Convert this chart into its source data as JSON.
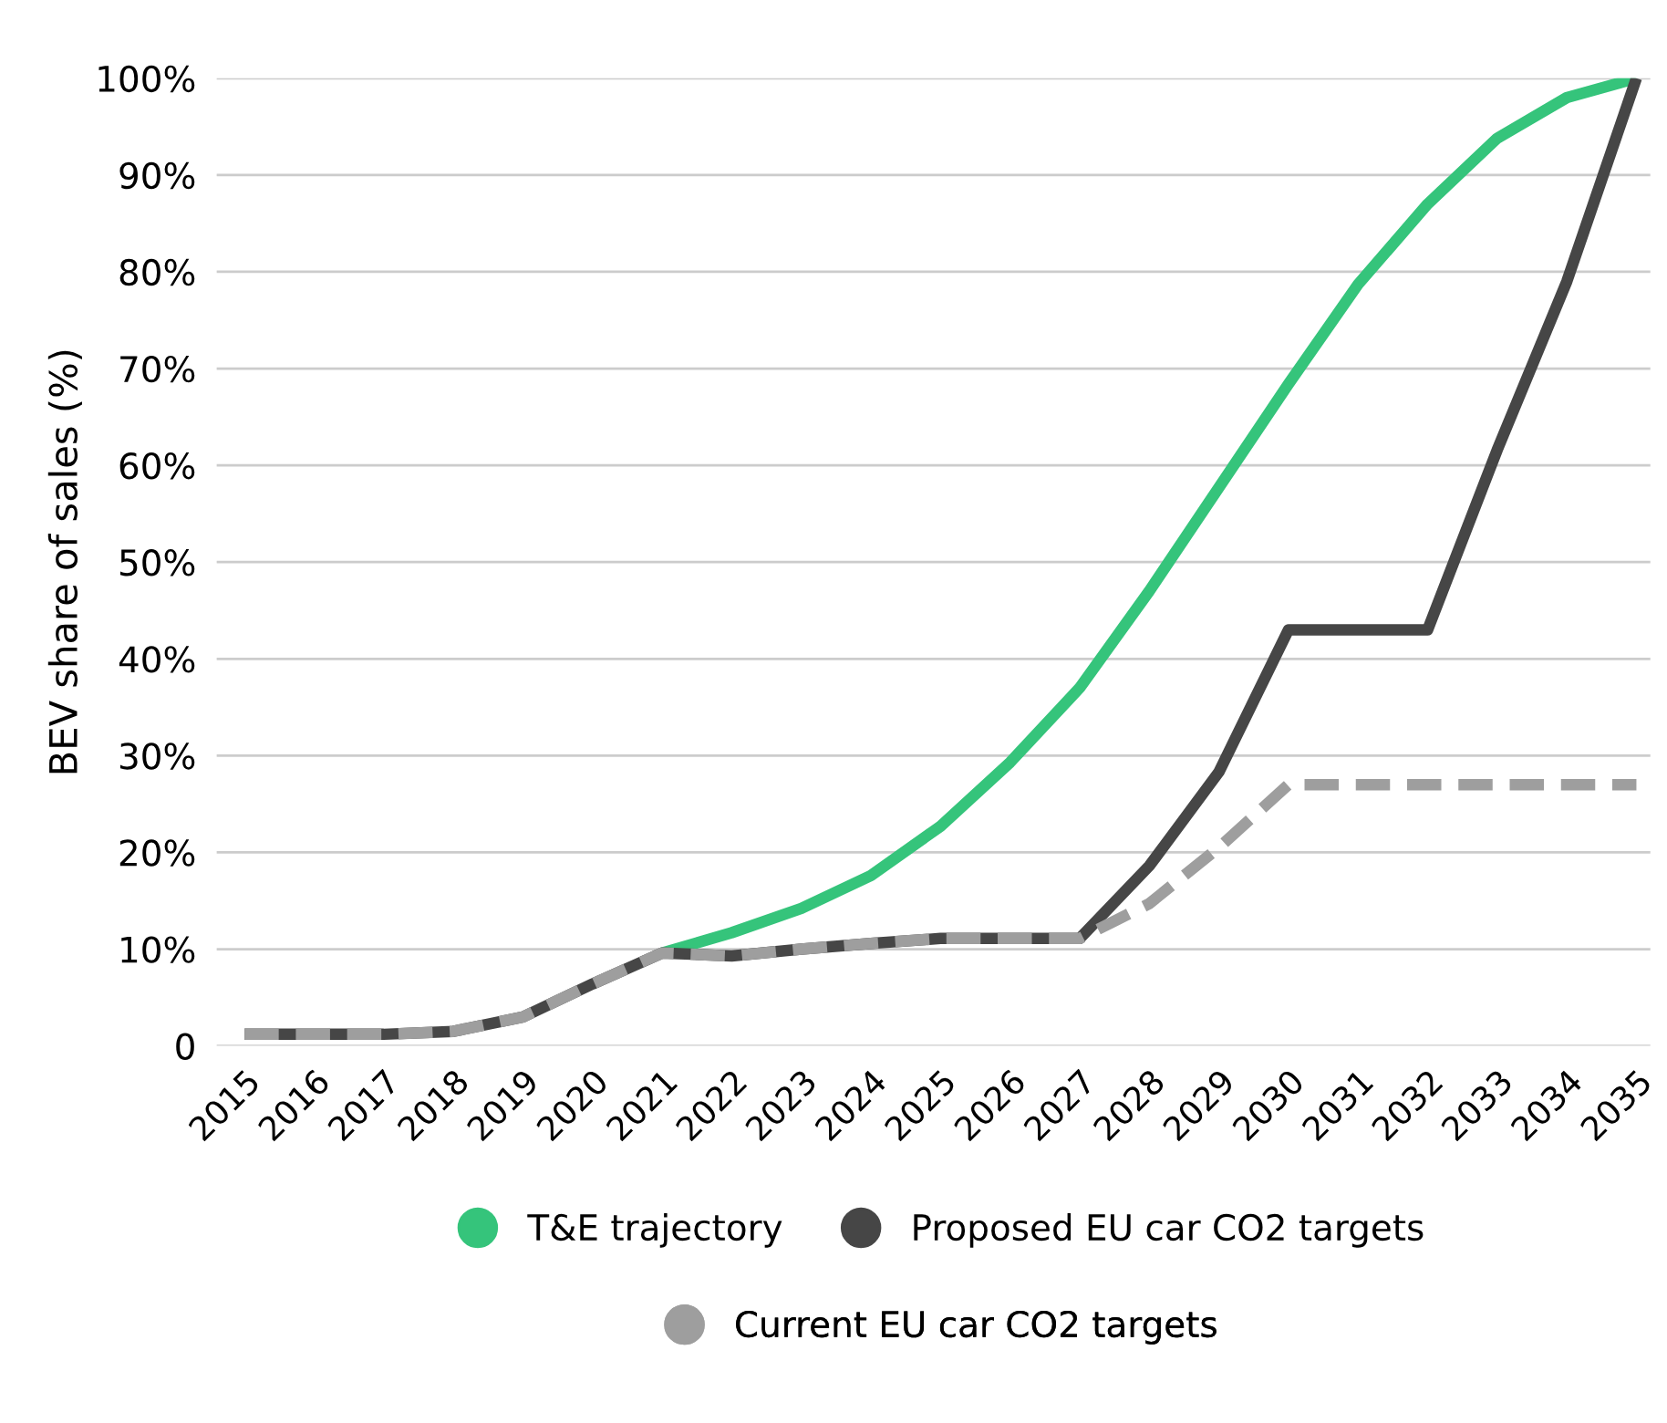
{
  "chart_data": {
    "type": "line",
    "ylabel": "BEV share of sales (%)",
    "categories": [
      "2015",
      "2016",
      "2017",
      "2018",
      "2019",
      "2020",
      "2021",
      "2022",
      "2023",
      "2024",
      "2025",
      "2026",
      "2027",
      "2028",
      "2029",
      "2030",
      "2031",
      "2032",
      "2033",
      "2034",
      "2035"
    ],
    "series": [
      {
        "name": "T&E trajectory",
        "color": "#35c47b",
        "line_style": "solid",
        "values": [
          null,
          null,
          null,
          null,
          null,
          null,
          9.6,
          11.7,
          14.2,
          17.6,
          22.7,
          29.3,
          37,
          47,
          57.7,
          68.4,
          78.7,
          87,
          93.8,
          98,
          100
        ]
      },
      {
        "name": "Proposed EU car CO2 targets",
        "color": "#464646",
        "line_style": "solid",
        "values": [
          1.2,
          1.2,
          1.2,
          1.5,
          3,
          6.4,
          9.6,
          9.3,
          10,
          10.6,
          11.1,
          11.1,
          11.1,
          18.6,
          28.3,
          43,
          43,
          43,
          61.6,
          79,
          100
        ]
      },
      {
        "name": "Current EU car CO2 targets",
        "color": "#9e9e9e",
        "line_style": "dashed",
        "values": [
          1.2,
          1.2,
          1.2,
          1.5,
          3,
          6.4,
          9.6,
          9.3,
          10,
          10.6,
          11.1,
          11.1,
          11.1,
          14.7,
          20.5,
          27,
          27,
          27,
          27,
          27,
          27
        ]
      }
    ],
    "ylim": [
      0,
      100
    ],
    "yticks": [
      {
        "value": 0,
        "label": "0"
      },
      {
        "value": 10,
        "label": "10%"
      },
      {
        "value": 20,
        "label": "20%"
      },
      {
        "value": 30,
        "label": "30%"
      },
      {
        "value": 40,
        "label": "40%"
      },
      {
        "value": 50,
        "label": "50%"
      },
      {
        "value": 60,
        "label": "60%"
      },
      {
        "value": 70,
        "label": "70%"
      },
      {
        "value": 80,
        "label": "80%"
      },
      {
        "value": 90,
        "label": "90%"
      },
      {
        "value": 100,
        "label": "100%"
      }
    ],
    "grid": "y",
    "legend": "bottom",
    "marker": "none"
  }
}
